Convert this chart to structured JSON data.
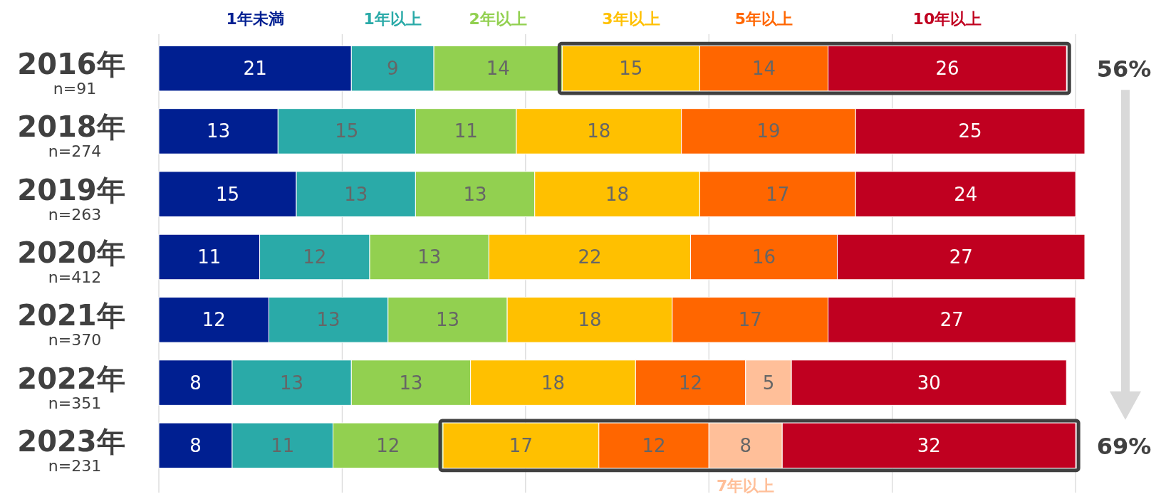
{
  "chart_data": {
    "type": "bar",
    "orientation": "horizontal",
    "stacked": true,
    "categories": [
      "2016年\nn=91",
      "2018年\nn=274",
      "2019年\nn=263",
      "2020年\nn=412",
      "2021年\nn=370",
      "2022年\nn=351",
      "2023年\nn=231"
    ],
    "series": [
      {
        "name": "1年未満",
        "color": "#001f91",
        "values": [
          21,
          13,
          15,
          11,
          12,
          8,
          8
        ]
      },
      {
        "name": "1年以上",
        "color": "#2aaaa8",
        "values": [
          9,
          15,
          13,
          12,
          13,
          13,
          11
        ]
      },
      {
        "name": "2年以上",
        "color": "#92d050",
        "values": [
          14,
          11,
          13,
          13,
          13,
          13,
          12
        ]
      },
      {
        "name": "3年以上",
        "color": "#ffc000",
        "values": [
          15,
          18,
          18,
          22,
          18,
          18,
          17
        ]
      },
      {
        "name": "5年以上",
        "color": "#ff6600",
        "values": [
          14,
          19,
          17,
          16,
          17,
          12,
          12
        ]
      },
      {
        "name": "7年以上",
        "color": "#ffbf99",
        "values": [
          null,
          null,
          null,
          null,
          null,
          5,
          8
        ]
      },
      {
        "name": "10年以上",
        "color": "#c00020",
        "values": [
          26,
          25,
          24,
          27,
          27,
          30,
          32
        ]
      }
    ],
    "xlim": [
      0,
      101
    ],
    "xticks": [
      {
        "value": 0,
        "label": null
      },
      {
        "value": 20,
        "label": null
      },
      {
        "value": 40,
        "label": null
      },
      {
        "value": 60,
        "label": null
      },
      {
        "value": 80,
        "label": null
      },
      {
        "value": 100,
        "label": null
      }
    ],
    "grid": "x",
    "legend": "top",
    "data_labels": true,
    "tick_labels": "y",
    "annotations": [
      "56%",
      "69%"
    ]
  }
}
